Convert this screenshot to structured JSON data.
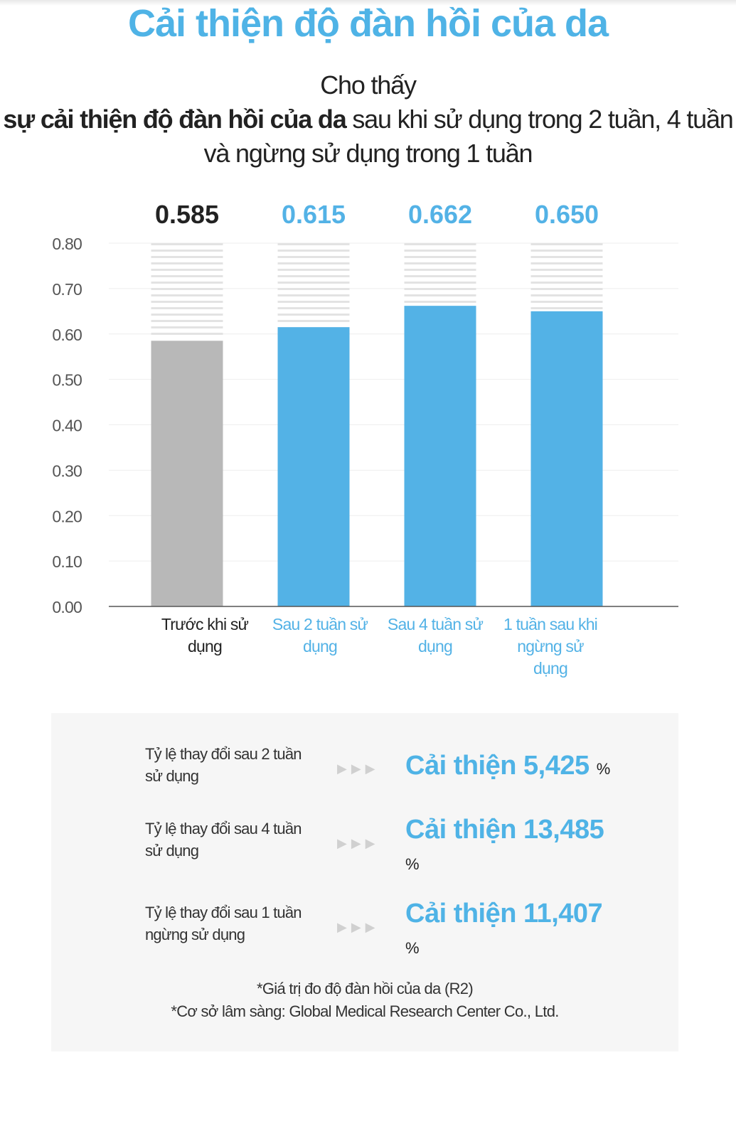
{
  "title": "Cải thiện độ đàn hồi của da",
  "subtitle": {
    "line1": "Cho thấy",
    "bold": "sự cải thiện độ đàn hồi của da",
    "rest": " sau khi sử dụng trong 2 tuần, 4 tuần và ngừng sử dụng trong 1 tuần"
  },
  "chart_data": {
    "type": "bar",
    "categories": [
      "Trước khi sử dụng",
      "Sau 2 tuần sử dụng",
      "Sau 4 tuần sử dụng",
      "1 tuần sau khi ngừng sử dụng"
    ],
    "category_lines": [
      [
        "Trước khi sử",
        "dụng"
      ],
      [
        "Sau 2 tuần sử",
        "dụng"
      ],
      [
        "Sau 4 tuần sử",
        "dụng"
      ],
      [
        "1 tuần sau khi",
        "ngừng sử",
        "dụng"
      ]
    ],
    "values": [
      0.585,
      0.615,
      0.662,
      0.65
    ],
    "value_labels": [
      "0.585",
      "0.615",
      "0.662",
      "0.650"
    ],
    "yticks": [
      "0.00",
      "0.10",
      "0.20",
      "0.30",
      "0.40",
      "0.50",
      "0.60",
      "0.70",
      "0.80"
    ],
    "ylim": [
      0,
      0.8
    ],
    "grid": true,
    "colors": {
      "baseline_bar": "#b8b8b8",
      "bar": "#53b2e6",
      "baseline_label": "#222222",
      "label": "#53b2e6",
      "stripe": "#e3e3e3"
    }
  },
  "results": [
    {
      "label": "Tỷ lệ thay đổi sau 2 tuần sử dụng",
      "value": "Cải thiện 5,425",
      "unit": "%"
    },
    {
      "label": "Tỷ lệ thay đổi sau 4 tuần sử dụng",
      "value": "Cải thiện 13,485",
      "unit": "%"
    },
    {
      "label": "Tỷ lệ thay đổi sau 1 tuần ngừng sử dụng",
      "value": "Cải thiện 11,407",
      "unit": "%"
    }
  ],
  "arrows": "▶▶▶",
  "notes": {
    "line1": "*Giá trị đo độ đàn hồi của da (R2)",
    "line2": "*Cơ sở lâm sàng: Global Medical Research Center Co., Ltd."
  }
}
